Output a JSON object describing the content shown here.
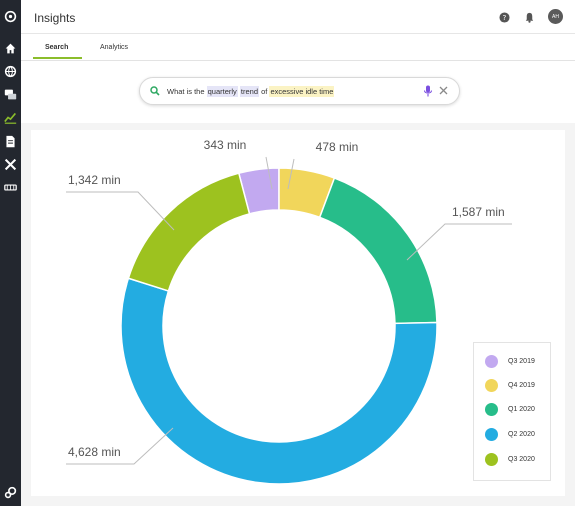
{
  "app": {
    "title": "Insights",
    "avatar_initials": "AH"
  },
  "sidebar": {
    "items": [
      {
        "icon": "logo-icon"
      },
      {
        "icon": "home-icon"
      },
      {
        "icon": "globe-icon"
      },
      {
        "icon": "chat-icon"
      },
      {
        "icon": "insights-chart-icon",
        "active": true
      },
      {
        "icon": "document-icon"
      },
      {
        "icon": "tools-icon"
      },
      {
        "icon": "truck-icon"
      },
      {
        "icon": "settings-gear-icon"
      }
    ]
  },
  "header_icons": [
    "help-icon",
    "bell-icon"
  ],
  "tabs": [
    {
      "label": "Search",
      "active": true
    },
    {
      "label": "Analytics",
      "active": false
    }
  ],
  "search": {
    "tokens": [
      {
        "text": "What is the",
        "highlight": "none"
      },
      {
        "text": "quarterly",
        "highlight": "blue"
      },
      {
        "text": "trend",
        "highlight": "blue"
      },
      {
        "text": "of",
        "highlight": "none"
      },
      {
        "text": "excessive idle time",
        "highlight": "yellow"
      }
    ]
  },
  "colors": {
    "accent": "#8bbd2b",
    "sidebar_bg": "#23272f"
  },
  "chart_data": {
    "type": "pie",
    "donut": true,
    "title": "",
    "unit": "min",
    "categories": [
      "Q3 2019",
      "Q4 2019",
      "Q1 2020",
      "Q2 2020",
      "Q3 2020"
    ],
    "values": [
      343,
      478,
      1587,
      4628,
      1342
    ],
    "labels": [
      "343 min",
      "478 min",
      "1,587 min",
      "4,628 min",
      "1,342 min"
    ],
    "colors": [
      "#c2a9f0",
      "#f1d65b",
      "#27bd8a",
      "#23ace1",
      "#9dc21f"
    ],
    "legend_position": "bottom-right"
  }
}
